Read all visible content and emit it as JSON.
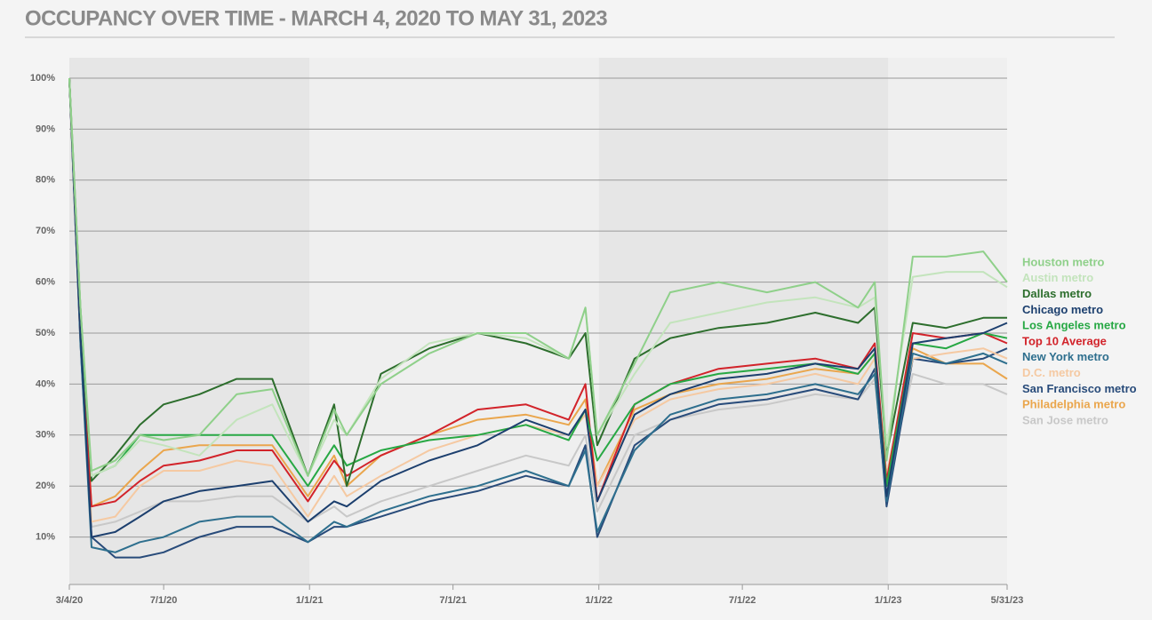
{
  "chart_data": {
    "type": "line",
    "title": "OCCUPANCY OVER TIME - MARCH 4, 2020 TO MAY 31, 2023",
    "x": [
      "2020-03-04",
      "2020-03-18",
      "2020-04-01",
      "2020-05-01",
      "2020-06-01",
      "2020-07-01",
      "2020-08-15",
      "2020-10-01",
      "2020-11-15",
      "2020-12-30",
      "2021-02-01",
      "2021-02-17",
      "2021-04-01",
      "2021-06-01",
      "2021-08-01",
      "2021-10-01",
      "2021-11-24",
      "2021-12-15",
      "2021-12-30",
      "2022-02-15",
      "2022-04-01",
      "2022-06-01",
      "2022-08-01",
      "2022-10-01",
      "2022-11-24",
      "2022-12-15",
      "2022-12-30",
      "2023-02-01",
      "2023-03-15",
      "2023-05-01",
      "2023-05-31"
    ],
    "xlim": [
      "2020-03-04",
      "2023-05-31"
    ],
    "xticks": [
      {
        "value": "2020-03-04",
        "label": "3/4/20"
      },
      {
        "value": "2020-07-01",
        "label": "7/1/20"
      },
      {
        "value": "2021-01-01",
        "label": "1/1/21"
      },
      {
        "value": "2021-07-01",
        "label": "7/1/21"
      },
      {
        "value": "2022-01-01",
        "label": "1/1/22"
      },
      {
        "value": "2022-07-01",
        "label": "7/1/22"
      },
      {
        "value": "2023-01-01",
        "label": "1/1/23"
      },
      {
        "value": "2023-05-31",
        "label": "5/31/23"
      }
    ],
    "ylim": [
      0,
      104
    ],
    "yticks": [
      {
        "value": 10,
        "label": "10%"
      },
      {
        "value": 20,
        "label": "20%"
      },
      {
        "value": 30,
        "label": "30%"
      },
      {
        "value": 40,
        "label": "40%"
      },
      {
        "value": 50,
        "label": "50%"
      },
      {
        "value": 60,
        "label": "60%"
      },
      {
        "value": 70,
        "label": "70%"
      },
      {
        "value": 80,
        "label": "80%"
      },
      {
        "value": 90,
        "label": "90%"
      },
      {
        "value": 100,
        "label": "100%"
      }
    ],
    "grid": true,
    "series": [
      {
        "name": "Houston metro",
        "color": "#8fd08a",
        "values": [
          100,
          55,
          23,
          25,
          30,
          29,
          30,
          38,
          39,
          22,
          35,
          30,
          40,
          46,
          50,
          50,
          45,
          55,
          30,
          44,
          58,
          60,
          58,
          60,
          55,
          60,
          25,
          65,
          65,
          66,
          60
        ]
      },
      {
        "name": "Austin metro",
        "color": "#c3e4bc",
        "values": [
          100,
          55,
          22,
          24,
          29,
          28,
          26,
          33,
          36,
          22,
          33,
          30,
          41,
          48,
          50,
          49,
          45,
          55,
          30,
          42,
          52,
          54,
          56,
          57,
          55,
          57,
          28,
          61,
          62,
          62,
          59
        ]
      },
      {
        "name": "Dallas metro",
        "color": "#2d6e2d",
        "values": [
          100,
          55,
          21,
          26,
          32,
          36,
          38,
          41,
          41,
          22,
          36,
          20,
          42,
          47,
          50,
          48,
          45,
          50,
          28,
          45,
          49,
          51,
          52,
          54,
          52,
          55,
          26,
          52,
          51,
          53,
          53
        ]
      },
      {
        "name": "Chicago metro",
        "color": "#1c3f6e",
        "values": [
          100,
          50,
          10,
          11,
          14,
          17,
          19,
          20,
          21,
          13,
          17,
          16,
          21,
          25,
          28,
          33,
          30,
          35,
          17,
          34,
          38,
          41,
          42,
          44,
          43,
          47,
          18,
          48,
          49,
          50,
          52
        ]
      },
      {
        "name": "Los Angeles metro",
        "color": "#27a844",
        "values": [
          100,
          52,
          22,
          24,
          30,
          30,
          30,
          30,
          30,
          20,
          28,
          24,
          27,
          29,
          30,
          32,
          29,
          35,
          25,
          36,
          40,
          42,
          43,
          44,
          42,
          46,
          20,
          48,
          47,
          50,
          49
        ]
      },
      {
        "name": "Top 10 Average",
        "color": "#d2232a",
        "values": [
          100,
          50,
          16,
          17,
          21,
          24,
          25,
          27,
          27,
          17,
          25,
          22,
          26,
          30,
          35,
          36,
          33,
          40,
          17,
          36,
          40,
          43,
          44,
          45,
          43,
          48,
          21,
          50,
          49,
          50,
          48
        ]
      },
      {
        "name": "New York metro",
        "color": "#2e6f8e",
        "values": [
          100,
          48,
          8,
          7,
          9,
          10,
          13,
          14,
          14,
          9,
          13,
          12,
          15,
          18,
          20,
          23,
          20,
          27,
          11,
          27,
          34,
          37,
          38,
          40,
          38,
          42,
          17,
          46,
          44,
          46,
          44
        ]
      },
      {
        "name": "D.C. metro",
        "color": "#f5c9a2",
        "values": [
          100,
          52,
          13,
          14,
          20,
          23,
          23,
          25,
          24,
          14,
          22,
          18,
          22,
          27,
          30,
          32,
          30,
          34,
          20,
          33,
          37,
          39,
          40,
          42,
          40,
          45,
          22,
          45,
          46,
          47,
          45
        ]
      },
      {
        "name": "San Francisco metro",
        "color": "#284b7a",
        "values": [
          100,
          48,
          10,
          6,
          6,
          7,
          10,
          12,
          12,
          9,
          12,
          12,
          14,
          17,
          19,
          22,
          20,
          28,
          10,
          28,
          33,
          36,
          37,
          39,
          37,
          43,
          16,
          45,
          44,
          45,
          47
        ]
      },
      {
        "name": "Philadelphia metro",
        "color": "#eaa64d",
        "values": [
          100,
          52,
          16,
          18,
          23,
          27,
          28,
          28,
          28,
          18,
          26,
          20,
          26,
          30,
          33,
          34,
          32,
          37,
          20,
          35,
          38,
          40,
          41,
          43,
          42,
          46,
          22,
          47,
          44,
          44,
          41
        ]
      },
      {
        "name": "San Jose metro",
        "color": "#c8c8c8",
        "values": [
          100,
          50,
          12,
          13,
          15,
          17,
          17,
          18,
          18,
          13,
          16,
          14,
          17,
          20,
          23,
          26,
          24,
          30,
          15,
          30,
          33,
          35,
          36,
          38,
          37,
          41,
          20,
          42,
          40,
          40,
          38
        ]
      }
    ]
  }
}
